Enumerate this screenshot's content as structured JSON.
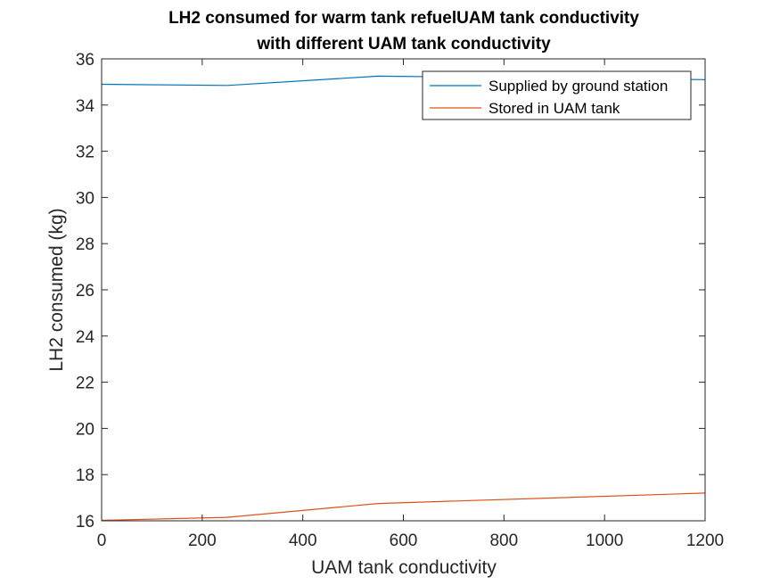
{
  "chart_data": {
    "type": "line",
    "title": [
      "LH2 consumed for warm tank refuelUAM tank conductivity",
      "with different UAM tank conductivity"
    ],
    "xlabel": "UAM tank conductivity",
    "ylabel": "LH2 consumed (kg)",
    "xlim": [
      0,
      1200
    ],
    "ylim": [
      16,
      36
    ],
    "xticks": [
      0,
      200,
      400,
      600,
      800,
      1000,
      1200
    ],
    "yticks": [
      16,
      18,
      20,
      22,
      24,
      26,
      28,
      30,
      32,
      34,
      36
    ],
    "grid": false,
    "legend_position": "top-right",
    "series": [
      {
        "name": "Supplied by ground station",
        "color": "#0072BD",
        "x": [
          0,
          250,
          550,
          1200
        ],
        "y": [
          34.9,
          34.85,
          35.25,
          35.1
        ]
      },
      {
        "name": "Stored in UAM tank",
        "color": "#D95319",
        "x": [
          0,
          250,
          550,
          1200
        ],
        "y": [
          16.02,
          16.15,
          16.75,
          17.2
        ]
      }
    ]
  }
}
